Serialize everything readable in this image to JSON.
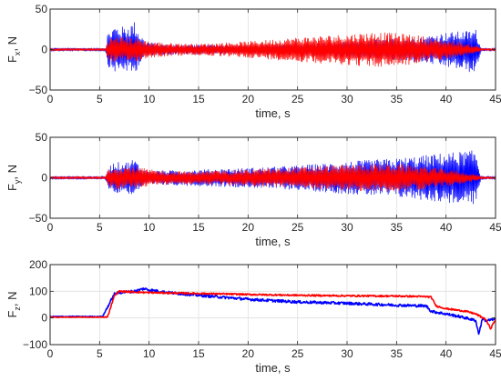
{
  "chart_data": [
    {
      "type": "line",
      "xlabel": "time, s",
      "ylabel_main": "F",
      "ylabel_sub": "x",
      "ylabel_tail": ", N",
      "xlim": [
        0,
        45
      ],
      "ylim": [
        -50,
        50
      ],
      "xticks": [
        0,
        5,
        10,
        15,
        20,
        25,
        30,
        35,
        40,
        45
      ],
      "yticks": [
        -50,
        0,
        50
      ],
      "grid": true,
      "series": [
        {
          "color": "#0000ff",
          "kind": "envelope",
          "t": [
            0,
            5.6,
            5.8,
            6.5,
            7.5,
            8.5,
            9.0,
            9.5,
            10.5,
            12,
            15,
            20,
            25,
            30,
            35,
            38,
            40,
            41,
            42,
            43,
            43.5,
            44,
            45
          ],
          "upper": [
            2,
            2,
            20,
            30,
            28,
            35,
            22,
            12,
            8,
            6,
            6,
            5,
            7,
            10,
            14,
            17,
            21,
            22,
            23,
            25,
            3,
            2,
            2
          ],
          "lower": [
            -2,
            -2,
            -20,
            -28,
            -26,
            -32,
            -18,
            -10,
            -7,
            -6,
            -6,
            -5,
            -7,
            -10,
            -14,
            -17,
            -22,
            -24,
            -27,
            -30,
            -3,
            -2,
            -2
          ]
        },
        {
          "color": "#ff0000",
          "kind": "envelope",
          "t": [
            0,
            5.6,
            5.8,
            6.5,
            8,
            9,
            10,
            12,
            15,
            20,
            25,
            30,
            33,
            35,
            37,
            39,
            41,
            42,
            43,
            43.5,
            44,
            45
          ],
          "upper": [
            1.5,
            1.5,
            12,
            16,
            15,
            14,
            10,
            8,
            7,
            10,
            15,
            19,
            22,
            20,
            18,
            13,
            10,
            7,
            5,
            2,
            1.5,
            1.5
          ],
          "lower": [
            -1.5,
            -1.5,
            -12,
            -16,
            -15,
            -14,
            -10,
            -8,
            -7,
            -10,
            -15,
            -19,
            -22,
            -20,
            -18,
            -13,
            -10,
            -7,
            -5,
            -2,
            -1.5,
            -1.5
          ]
        }
      ]
    },
    {
      "type": "line",
      "xlabel": "time, s",
      "ylabel_main": "F",
      "ylabel_sub": "y",
      "ylabel_tail": ", N",
      "xlim": [
        0,
        45
      ],
      "ylim": [
        -50,
        50
      ],
      "xticks": [
        0,
        5,
        10,
        15,
        20,
        25,
        30,
        35,
        40,
        45
      ],
      "yticks": [
        -50,
        0,
        50
      ],
      "grid": true,
      "series": [
        {
          "color": "#0000ff",
          "kind": "envelope",
          "t": [
            0,
            5.6,
            5.8,
            6.5,
            7.5,
            8.5,
            9.0,
            9.5,
            10.5,
            12,
            15,
            20,
            25,
            30,
            35,
            38,
            40,
            41,
            42,
            43,
            43.5,
            44,
            45
          ],
          "upper": [
            2,
            2,
            12,
            20,
            18,
            24,
            16,
            10,
            9,
            9,
            10,
            12,
            15,
            20,
            24,
            28,
            31,
            32,
            33,
            34,
            3,
            2,
            2
          ],
          "lower": [
            -2,
            -2,
            -12,
            -20,
            -18,
            -22,
            -14,
            -10,
            -9,
            -9,
            -10,
            -12,
            -15,
            -20,
            -24,
            -28,
            -31,
            -32,
            -33,
            -33,
            -3,
            -2,
            -2
          ]
        },
        {
          "color": "#ff0000",
          "kind": "envelope",
          "t": [
            0,
            5.6,
            5.8,
            6.5,
            8,
            9,
            10,
            12,
            15,
            20,
            25,
            30,
            33,
            35,
            37,
            39,
            41,
            42,
            43,
            43.5,
            44,
            45
          ],
          "upper": [
            1.5,
            1.5,
            10,
            14,
            14,
            13,
            10,
            8,
            8,
            10,
            13,
            16,
            17,
            17,
            15,
            12,
            9,
            6,
            4,
            2,
            1.5,
            1.5
          ],
          "lower": [
            -1.5,
            -1.5,
            -10,
            -14,
            -14,
            -13,
            -10,
            -8,
            -8,
            -10,
            -13,
            -16,
            -17,
            -17,
            -15,
            -12,
            -9,
            -6,
            -4,
            -2,
            -1.5,
            -1.5
          ]
        }
      ]
    },
    {
      "type": "line",
      "xlabel": "time, s",
      "ylabel_main": "F",
      "ylabel_sub": "z",
      "ylabel_tail": ", N",
      "xlim": [
        0,
        45
      ],
      "ylim": [
        -100,
        200
      ],
      "xticks": [
        0,
        5,
        10,
        15,
        20,
        25,
        30,
        35,
        40,
        45
      ],
      "yticks": [
        -100,
        0,
        100,
        200
      ],
      "grid": true,
      "series": [
        {
          "color": "#0000ff",
          "kind": "trace",
          "noise": 5,
          "t": [
            0,
            5.3,
            6.5,
            7.0,
            8.5,
            9.5,
            10,
            11,
            12,
            15,
            20,
            25,
            30,
            35,
            38,
            38.5,
            40,
            41,
            42,
            43,
            43.3,
            43.7,
            44,
            45
          ],
          "y": [
            5,
            5,
            90,
            95,
            100,
            110,
            105,
            100,
            95,
            85,
            70,
            60,
            55,
            48,
            45,
            25,
            15,
            8,
            0,
            -10,
            -60,
            0,
            -10,
            -5
          ]
        },
        {
          "color": "#ff0000",
          "kind": "trace",
          "noise": 3,
          "t": [
            0,
            5.8,
            6.5,
            7.0,
            8,
            10,
            15,
            20,
            25,
            30,
            35,
            38,
            38.5,
            39,
            40,
            41,
            42,
            43,
            43.5,
            44,
            44.5,
            45
          ],
          "y": [
            3,
            3,
            85,
            100,
            98,
            95,
            92,
            88,
            85,
            83,
            82,
            80,
            78,
            45,
            35,
            30,
            25,
            15,
            5,
            -5,
            -40,
            -5
          ]
        }
      ]
    }
  ]
}
